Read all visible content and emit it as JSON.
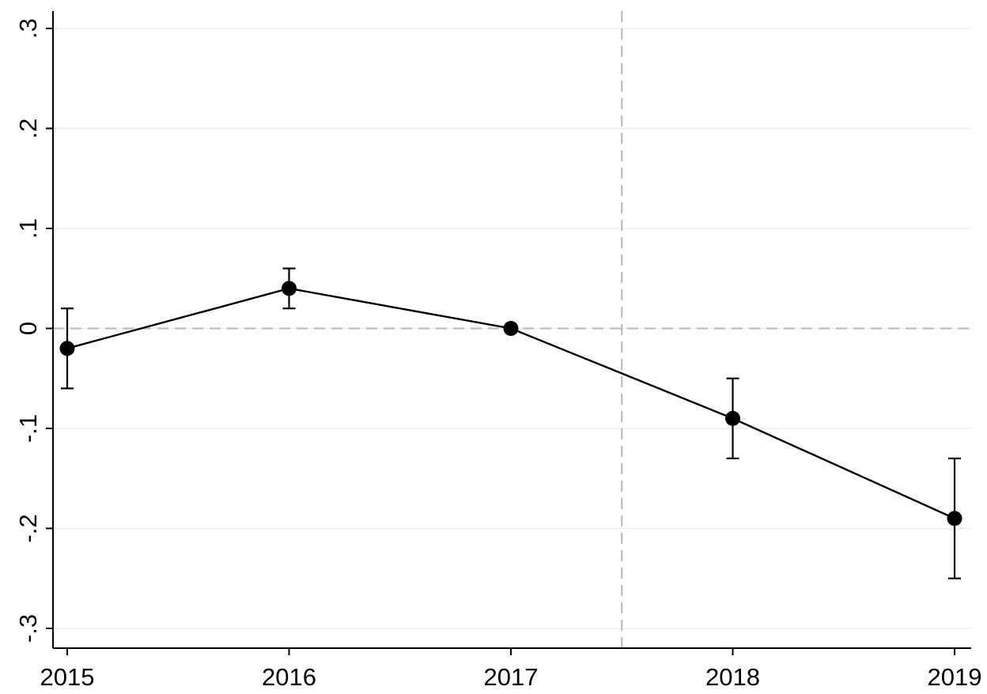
{
  "chart_data": {
    "type": "line",
    "title": "",
    "xlabel": "",
    "ylabel": "",
    "x": [
      2015,
      2016,
      2017,
      2018,
      2019
    ],
    "x_tick_labels": [
      "2015",
      "2016",
      "2017",
      "2018",
      "2019"
    ],
    "xlim": [
      2015,
      2019
    ],
    "ylim": [
      -0.3,
      0.3
    ],
    "y_ticks": [
      -0.3,
      -0.2,
      -0.1,
      0,
      0.1,
      0.2,
      0.3
    ],
    "y_tick_labels": [
      "-.3",
      "-.2",
      "-.1",
      "0",
      ".1",
      ".2",
      ".3"
    ],
    "grid": true,
    "series": [
      {
        "values": [
          -0.02,
          0.04,
          0.0,
          -0.09,
          -0.19
        ],
        "ci_lower": [
          -0.06,
          0.02,
          0.0,
          -0.13,
          -0.25
        ],
        "ci_upper": [
          0.02,
          0.06,
          0.0,
          -0.05,
          -0.13
        ],
        "color": "#000000"
      }
    ],
    "reference_lines": {
      "horizontal_y": 0,
      "vertical_x": 2017.5,
      "color": "#bdbdbd",
      "style": "dashed"
    }
  }
}
